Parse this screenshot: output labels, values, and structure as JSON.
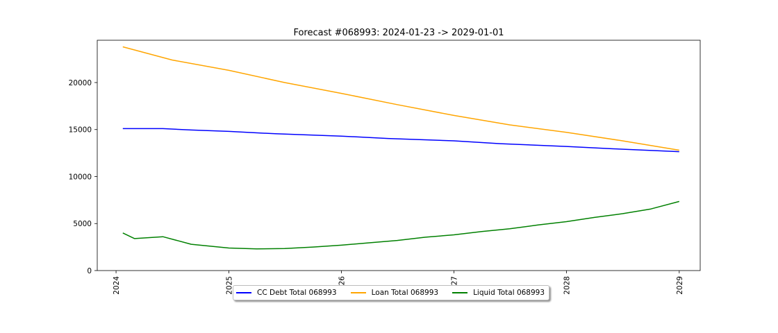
{
  "chart_data": {
    "type": "line",
    "title": "Forecast #068993: 2024-01-23 -> 2029-01-01",
    "xlabel": "",
    "ylabel": "",
    "xlim": [
      "2023-11-01",
      "2029-03-10"
    ],
    "ylim": [
      0,
      24500
    ],
    "x_ticks": [
      {
        "date": "2024-01-01",
        "label": "2024"
      },
      {
        "date": "2025-01-01",
        "label": "2025"
      },
      {
        "date": "2026-01-01",
        "label": "2026"
      },
      {
        "date": "2027-01-01",
        "label": "2027"
      },
      {
        "date": "2028-01-01",
        "label": "2028"
      },
      {
        "date": "2029-01-01",
        "label": "2029"
      }
    ],
    "y_ticks": [
      0,
      5000,
      10000,
      15000,
      20000
    ],
    "grid": false,
    "legend_placement": "bottom-center",
    "series": [
      {
        "name": "CC Debt Total 068993",
        "color": "#0000ff",
        "x": [
          "2024-01-23",
          "2024-06-01",
          "2024-09-01",
          "2025-01-01",
          "2025-06-01",
          "2026-01-01",
          "2026-06-01",
          "2027-01-01",
          "2027-06-01",
          "2028-01-01",
          "2028-06-01",
          "2029-01-01"
        ],
        "y": [
          15100,
          15100,
          14950,
          14800,
          14550,
          14300,
          14050,
          13800,
          13500,
          13200,
          12950,
          12650
        ]
      },
      {
        "name": "Loan Total 068993",
        "color": "#ffa500",
        "x": [
          "2024-01-23",
          "2024-07-01",
          "2025-01-01",
          "2025-07-01",
          "2026-01-01",
          "2026-07-01",
          "2027-01-01",
          "2027-07-01",
          "2028-01-01",
          "2028-07-01",
          "2029-01-01"
        ],
        "y": [
          23800,
          22400,
          21300,
          20000,
          18850,
          17650,
          16500,
          15500,
          14700,
          13800,
          12800
        ]
      },
      {
        "name": "Liquid Total 068993",
        "color": "#008000",
        "x": [
          "2024-01-23",
          "2024-03-01",
          "2024-06-01",
          "2024-09-01",
          "2025-01-01",
          "2025-04-01",
          "2025-07-01",
          "2025-10-01",
          "2026-01-01",
          "2026-04-01",
          "2026-07-01",
          "2026-10-01",
          "2027-01-01",
          "2027-04-01",
          "2027-07-01",
          "2027-10-01",
          "2028-01-01",
          "2028-04-01",
          "2028-07-01",
          "2028-10-01",
          "2029-01-01"
        ],
        "y": [
          4000,
          3400,
          3600,
          2800,
          2400,
          2300,
          2350,
          2500,
          2700,
          2950,
          3200,
          3550,
          3800,
          4150,
          4450,
          4850,
          5200,
          5650,
          6050,
          6550,
          7350
        ]
      }
    ]
  }
}
